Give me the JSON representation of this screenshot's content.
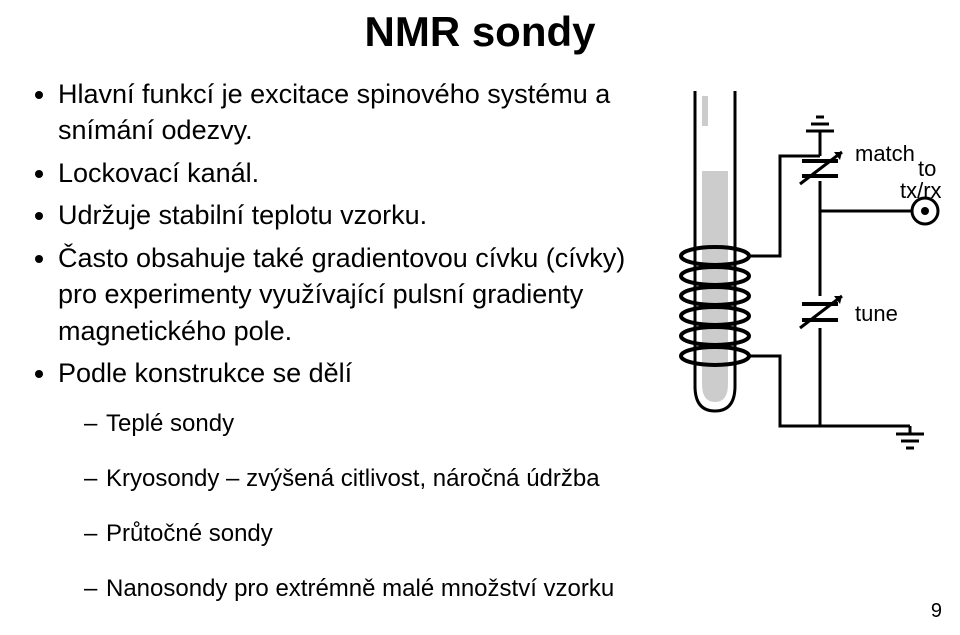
{
  "title": "NMR sondy",
  "bullets": {
    "b1": "Hlavní funkcí je excitace spinového systému a snímání odezvy.",
    "b2": "Lockovací kanál.",
    "b3": "Udržuje stabilní teplotu vzorku.",
    "b4": "Často obsahuje také gradientovou cívku (cívky) pro experimenty využívající pulsní gradienty magnetického pole.",
    "b5": "Podle konstrukce se dělí"
  },
  "sub": {
    "s1": "Teplé sondy",
    "s2": "Kryosondy – zvýšená citlivost, náročná údržba",
    "s3": "Průtočné sondy",
    "s4": "Nanosondy pro extrémně malé množství vzorku"
  },
  "page_number": "9",
  "diagram": {
    "match_label": "match",
    "tune_label": "tune",
    "txrx_label": "to tx/rx",
    "stroke": "#000000",
    "tube_outer": "#ffffff",
    "tube_fill": "#cccccc",
    "label_fontsize": 22
  }
}
